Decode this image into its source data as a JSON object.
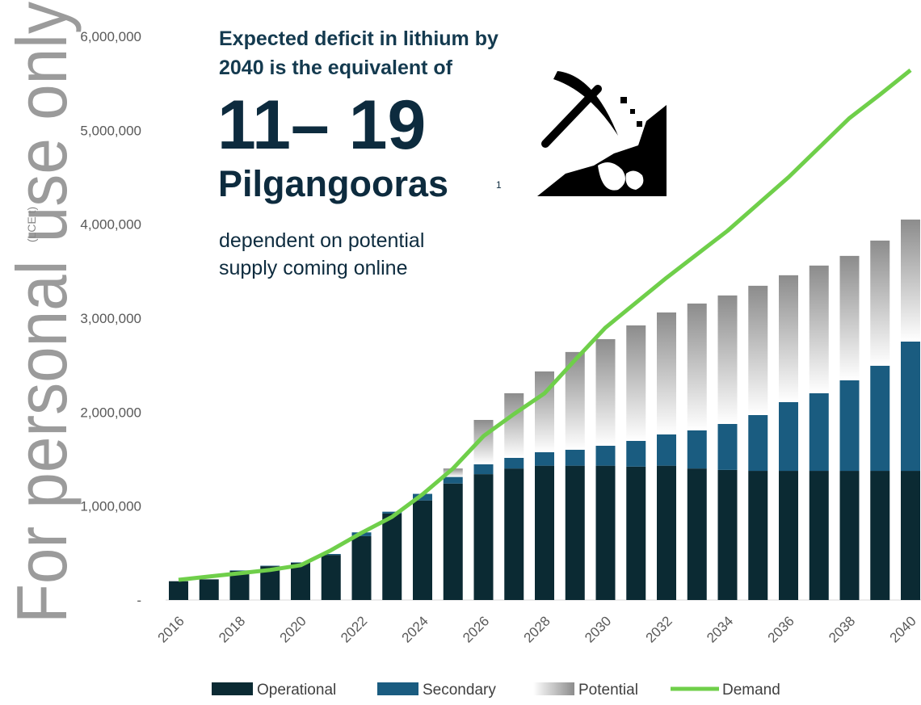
{
  "chart_data": {
    "type": "bar",
    "stacked": true,
    "watermark": "For personal use only",
    "y_label": "(LCE t)",
    "annotations": [
      "Expected deficit in lithium by",
      "2040 is the equivalent of",
      "11– 19",
      "Pilgangooras",
      "1",
      "dependent on potential",
      "supply coming online"
    ],
    "categories": [
      "2016",
      null,
      "2018",
      null,
      "2020",
      null,
      "2022",
      null,
      "2024",
      null,
      "2026",
      null,
      "2028",
      null,
      "2030",
      null,
      "2032",
      null,
      "2034",
      null,
      "2036",
      null,
      "2038",
      null,
      "2040"
    ],
    "ylim": [
      0,
      6000000
    ],
    "yticks": [
      {
        "value": 0,
        "label": "-"
      },
      {
        "value": 1000000,
        "label": "1,000,000"
      },
      {
        "value": 2000000,
        "label": "2,000,000"
      },
      {
        "value": 3000000,
        "label": "3,000,000"
      },
      {
        "value": 4000000,
        "label": "4,000,000"
      },
      {
        "value": 5000000,
        "label": "5,000,000"
      },
      {
        "value": 6000000,
        "label": "6,000,000"
      }
    ],
    "series": [
      {
        "name": "Operational",
        "type": "bar",
        "color": "#0b2a33",
        "values": [
          200000,
          220000,
          310000,
          360000,
          395000,
          480000,
          680000,
          920000,
          1060000,
          1240000,
          1340000,
          1400000,
          1430000,
          1430000,
          1430000,
          1420000,
          1430000,
          1400000,
          1385000,
          1375000,
          1375000,
          1375000,
          1375000,
          1375000,
          1375000
        ]
      },
      {
        "name": "Secondary",
        "type": "bar",
        "color": "#1a5c80",
        "values": [
          0,
          0,
          5000,
          5000,
          5000,
          10000,
          40000,
          20000,
          70000,
          70000,
          105000,
          113000,
          143000,
          170000,
          212000,
          274000,
          333000,
          406000,
          489000,
          594000,
          732000,
          826000,
          964000,
          1119000,
          1376000
        ]
      },
      {
        "name": "Potential",
        "type": "bar",
        "color": "#8c8c8c",
        "gradient": true,
        "values": [
          0,
          0,
          0,
          0,
          0,
          0,
          0,
          0,
          0,
          90000,
          472000,
          688000,
          860000,
          1040000,
          1135000,
          1229000,
          1298000,
          1350000,
          1368000,
          1376000,
          1350000,
          1359000,
          1324000,
          1332000,
          1299000
        ]
      },
      {
        "name": "Demand",
        "type": "line",
        "color": "#6fcf4a",
        "values": [
          215000,
          250000,
          285000,
          320000,
          370000,
          530000,
          715000,
          885000,
          1125000,
          1400000,
          1745000,
          1980000,
          2200000,
          2555000,
          2900000,
          3165000,
          3430000,
          3680000,
          3930000,
          4215000,
          4500000,
          4815000,
          5130000,
          5380000,
          5640000
        ]
      }
    ]
  }
}
